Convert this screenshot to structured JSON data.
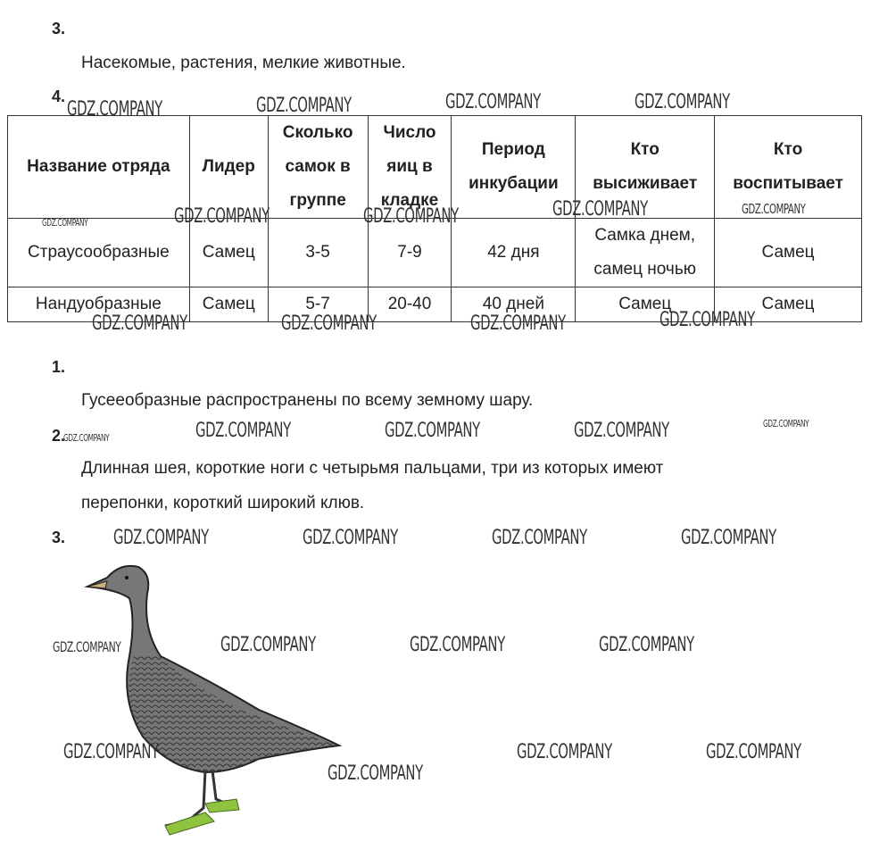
{
  "watermark": "GDZ.COMPANY",
  "section1": {
    "num": "3.",
    "text": "Насекомые, растения, мелкие животные."
  },
  "section2": {
    "num": "4.",
    "table": {
      "headers": [
        "Название отряда",
        "Лидер",
        "Сколько самок в группе",
        "Число яиц в кладке",
        "Период инкубации",
        "Кто высиживает",
        "Кто воспитывает"
      ],
      "rows": [
        [
          "Страусообразные",
          "Самец",
          "3-5",
          "7-9",
          "42 дня",
          "Самка днем, самец ночью",
          "Самец"
        ],
        [
          "Нандуобразные",
          "Самец",
          "5-7",
          "20-40",
          "40 дней",
          "Самец",
          "Самец"
        ]
      ]
    }
  },
  "section3": {
    "num": "1.",
    "text": "Гусееобразные распространены по всему земному шару."
  },
  "section4": {
    "num": "2.",
    "text1": "Длинная шея, короткие ноги с четырьмя пальцами, три из которых имеют",
    "text2": "перепонки, короткий широкий клюв."
  },
  "section5": {
    "num": "3.",
    "image": "goose-drawing"
  }
}
